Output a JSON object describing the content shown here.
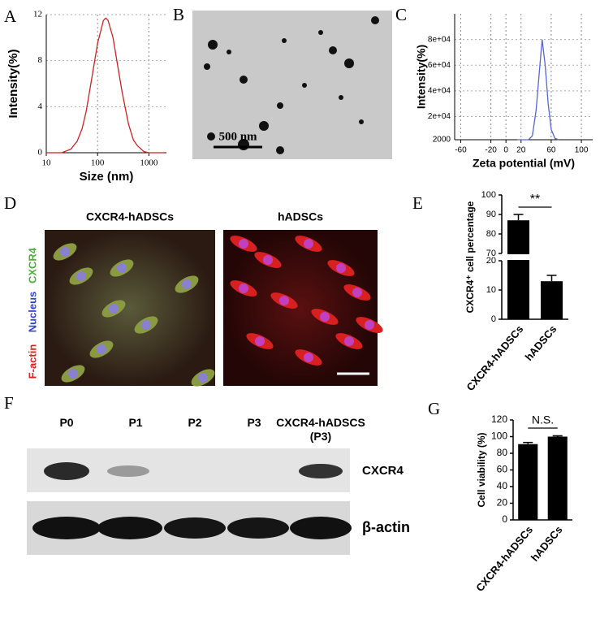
{
  "panel_labels": [
    "A",
    "B",
    "C",
    "D",
    "E",
    "F",
    "G"
  ],
  "tem": {
    "scale_bar": "500 nm"
  },
  "fluorescence": {
    "titles": [
      "CXCR4-hADSCs",
      "hADSCs"
    ],
    "stains": [
      "F-actin",
      "Nucleus",
      "CXCR4"
    ]
  },
  "western_blot": {
    "lanes": [
      "P0",
      "P1",
      "P2",
      "P3",
      "CXCR4-hADSCS\n(P3)"
    ],
    "rows": [
      "CXCR4",
      "β-actin"
    ]
  },
  "chart_data": [
    {
      "type": "line",
      "xlabel": "Size (nm)",
      "ylabel": "Intensity(%)",
      "xscale": "log",
      "x": [
        10,
        20,
        30,
        40,
        50,
        60,
        80,
        100,
        130,
        145,
        160,
        200,
        250,
        300,
        400,
        500,
        600,
        800,
        1000,
        2000
      ],
      "series": [
        {
          "color": "#cc2222",
          "values": [
            0,
            0,
            0.3,
            1,
            2.1,
            3.6,
            6.9,
            9.5,
            11.5,
            11.7,
            11.5,
            10,
            7.4,
            5.3,
            2.5,
            1.1,
            0.6,
            0.1,
            0,
            0
          ]
        }
      ],
      "xlim": [
        10,
        2200
      ],
      "xticks": [
        10,
        100,
        1000
      ],
      "ylim": [
        0,
        12
      ],
      "yticks": [
        0,
        4,
        8,
        12
      ],
      "grid": true
    },
    {
      "type": "line",
      "xlabel": "Zeta potential (mV)",
      "ylabel": "Intensity(%)",
      "x": [
        15,
        30,
        35,
        40,
        45,
        48,
        52,
        56,
        60,
        65,
        70
      ],
      "series": [
        {
          "color": "#5566cc",
          "values": [
            2000,
            2000,
            5000,
            25000,
            60000,
            80000,
            60000,
            30000,
            10000,
            3000,
            2000
          ]
        }
      ],
      "xlim": [
        -68,
        115
      ],
      "xticks": [
        -60,
        -20,
        0,
        20,
        60,
        100
      ],
      "ylim": [
        2000,
        100000
      ],
      "yticks": [
        2000,
        {
          "value": 20000,
          "label": "2e+04"
        },
        {
          "value": 40000,
          "label": "4e+04"
        },
        {
          "value": 60000,
          "label": "6e+04"
        },
        {
          "value": 80000,
          "label": "8e+04"
        }
      ],
      "grid": true
    },
    {
      "type": "bar",
      "ylabel": "CXCR4⁺ cell percentage",
      "categories": [
        "CXCR4-hADSCs",
        "hADSCs"
      ],
      "values": [
        87,
        13
      ],
      "errors": [
        3,
        2
      ],
      "color": "#000000",
      "ylim": [
        0,
        100
      ],
      "ybreak": [
        20,
        70
      ],
      "yticks": [
        0,
        10,
        20,
        70,
        80,
        90,
        100
      ],
      "significance": "**"
    },
    {
      "type": "bar",
      "ylabel": "Cell viability (%)",
      "categories": [
        "CXCR4-hADSCs",
        "hADSCs"
      ],
      "values": [
        91,
        100
      ],
      "errors": [
        2,
        1
      ],
      "color": "#000000",
      "ylim": [
        0,
        120
      ],
      "yticks": [
        0,
        20,
        40,
        60,
        80,
        100,
        120
      ],
      "significance": "N.S."
    }
  ]
}
